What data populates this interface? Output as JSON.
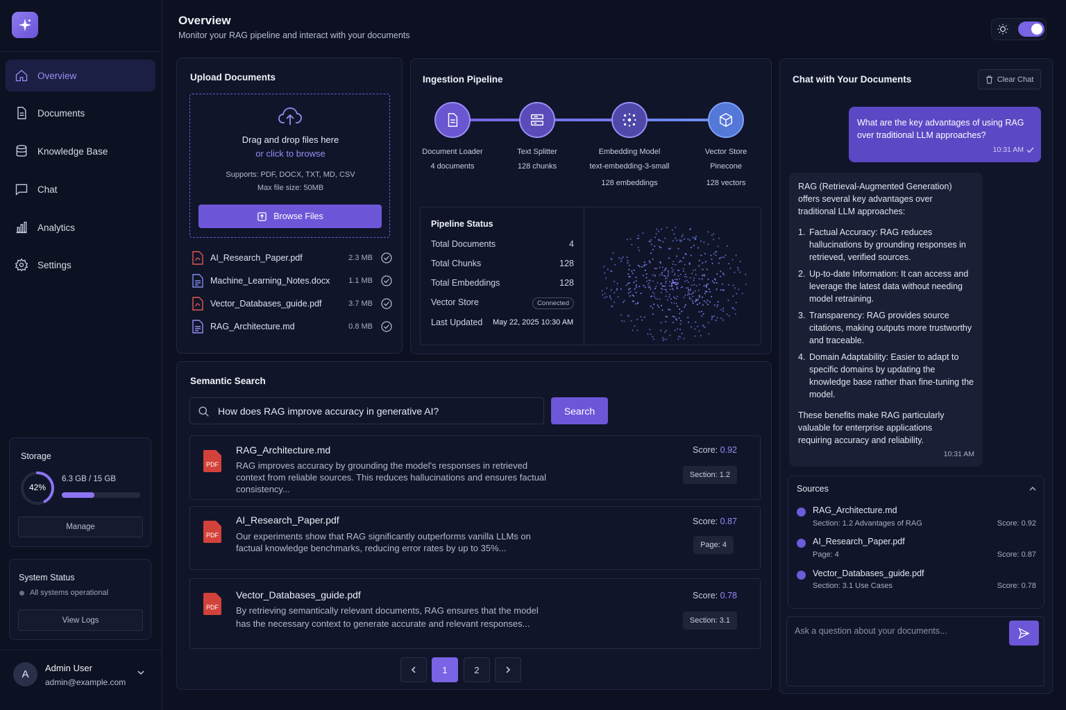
{
  "sidebar": {
    "nav": [
      {
        "label": "Overview",
        "icon": "home-icon",
        "active": true
      },
      {
        "label": "Documents",
        "icon": "document-icon"
      },
      {
        "label": "Knowledge Base",
        "icon": "database-icon"
      },
      {
        "label": "Chat",
        "icon": "chat-icon"
      },
      {
        "label": "Analytics",
        "icon": "bar-chart-icon"
      },
      {
        "label": "Settings",
        "icon": "gear-icon"
      }
    ],
    "storage": {
      "title": "Storage",
      "percent_label": "42%",
      "percent": 42,
      "used": "6.3 GB / 15 GB",
      "manage": "Manage"
    },
    "system": {
      "title": "System Status",
      "status": "All systems operational",
      "view_logs": "View Logs"
    },
    "user": {
      "initial": "A",
      "name": "Admin User",
      "email": "admin@example.com"
    }
  },
  "header": {
    "title": "Overview",
    "subtitle": "Monitor your RAG pipeline and interact with your documents"
  },
  "upload": {
    "title": "Upload Documents",
    "drag_text": "Drag and drop files here",
    "browse_link": "or click to browse",
    "supports": "Supports: PDF, DOCX, TXT, MD, CSV",
    "max_size": "Max file size: 50MB",
    "browse_button": "Browse Files",
    "files": [
      {
        "name": "AI_Research_Paper.pdf",
        "size": "2.3 MB",
        "type": "pdf"
      },
      {
        "name": "Machine_Learning_Notes.docx",
        "size": "1.1 MB",
        "type": "doc"
      },
      {
        "name": "Vector_Databases_guide.pdf",
        "size": "3.7 MB",
        "type": "pdf"
      },
      {
        "name": "RAG_Architecture.md",
        "size": "0.8 MB",
        "type": "md"
      }
    ]
  },
  "pipeline": {
    "title": "Ingestion Pipeline",
    "stages": [
      {
        "name": "Document Loader",
        "detail": "4 documents",
        "detail2": ""
      },
      {
        "name": "Text Splitter",
        "detail": "128 chunks",
        "detail2": ""
      },
      {
        "name": "Embedding Model",
        "detail": "text-embedding-3-small",
        "detail2": "128 embeddings"
      },
      {
        "name": "Vector Store",
        "detail": "Pinecone",
        "detail2": "128 vectors"
      }
    ],
    "status": {
      "title": "Pipeline Status",
      "rows": [
        {
          "label": "Total Documents",
          "value": "4"
        },
        {
          "label": "Total Chunks",
          "value": "128"
        },
        {
          "label": "Total Embeddings",
          "value": "128"
        }
      ],
      "vector_store_label": "Vector Store",
      "vector_store_badge": "Connected",
      "last_updated_label": "Last Updated",
      "last_updated_value": "May 22, 2025 10:30 AM"
    }
  },
  "search": {
    "title": "Semantic Search",
    "query": "How does RAG improve accuracy in generative AI?",
    "button": "Search",
    "score_label": "Score:",
    "results": [
      {
        "title": "RAG_Architecture.md",
        "body": "RAG improves accuracy by grounding the model's responses in retrieved context from reliable sources. This reduces hallucinations and ensures factual consistency...",
        "score": "0.92",
        "tag": "Section: 1.2"
      },
      {
        "title": "AI_Research_Paper.pdf",
        "body": "Our experiments show that RAG significantly outperforms vanilla LLMs on factual knowledge benchmarks, reducing error rates by up to 35%...",
        "score": "0.87",
        "tag": "Page: 4"
      },
      {
        "title": "Vector_Databases_guide.pdf",
        "body": "By retrieving semantically relevant documents, RAG ensures that the model has the necessary context to generate accurate and relevant responses...",
        "score": "0.78",
        "tag": "Section: 3.1"
      }
    ],
    "pages": [
      "1",
      "2"
    ]
  },
  "chat": {
    "title": "Chat with Your Documents",
    "clear": "Clear Chat",
    "user_message": "What are the key advantages of using RAG over traditional LLM approaches?",
    "user_time": "10:31 AM",
    "bot_intro": "RAG (Retrieval-Augmented Generation) offers several key advantages over traditional LLM approaches:",
    "bot_points": [
      "Factual Accuracy: RAG reduces hallucinations by grounding responses in retrieved, verified sources.",
      "Up-to-date Information: It can access and leverage the latest data without needing model retraining.",
      "Transparency: RAG provides source citations, making outputs more trustworthy and traceable.",
      "Domain Adaptability: Easier to adapt to specific domains by updating the knowledge base rather than fine-tuning the model."
    ],
    "bot_outro": "These benefits make RAG particularly valuable for enterprise applications requiring accuracy and reliability.",
    "bot_time": "10:31 AM",
    "sources_title": "Sources",
    "sources": [
      {
        "name": "RAG_Architecture.md",
        "detail": "Section: 1.2 Advantages of RAG",
        "score": "Score: 0.92"
      },
      {
        "name": "AI_Research_Paper.pdf",
        "detail": "Page: 4",
        "score": "Score: 0.87"
      },
      {
        "name": "Vector_Databases_guide.pdf",
        "detail": "Section: 3.1 Use Cases",
        "score": "Score: 0.78"
      }
    ],
    "input_placeholder": "Ask a question about your documents..."
  },
  "colors": {
    "accent": "#7a63e4",
    "background": "#0c1020",
    "panel": "#10152a"
  }
}
